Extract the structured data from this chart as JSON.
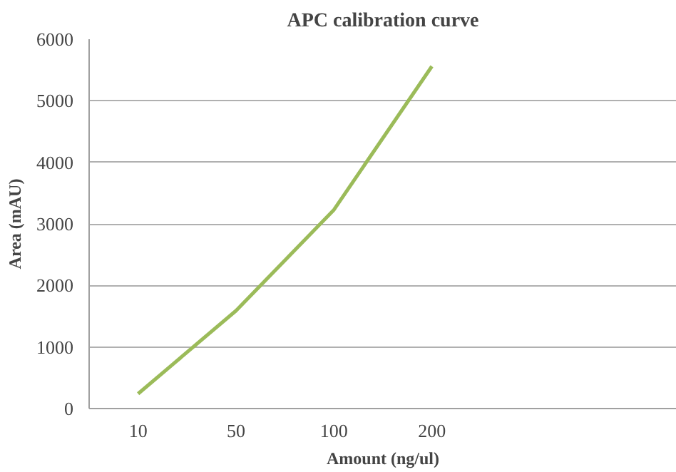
{
  "chart_data": {
    "type": "line",
    "title": "APC calibration curve",
    "xlabel": "Amount (ng/ul)",
    "ylabel": "Area (mAU)",
    "categories": [
      "10",
      "50",
      "100",
      "200",
      null,
      null
    ],
    "series": [
      {
        "color": "#9bbb59",
        "values": [
          240,
          1590,
          3230,
          5560,
          null,
          null
        ]
      }
    ],
    "ylim": [
      0,
      6000
    ],
    "yticks": [
      0,
      1000,
      2000,
      3000,
      4000,
      5000,
      6000
    ],
    "grid": "y",
    "marker": "none",
    "line_style": "solid"
  }
}
